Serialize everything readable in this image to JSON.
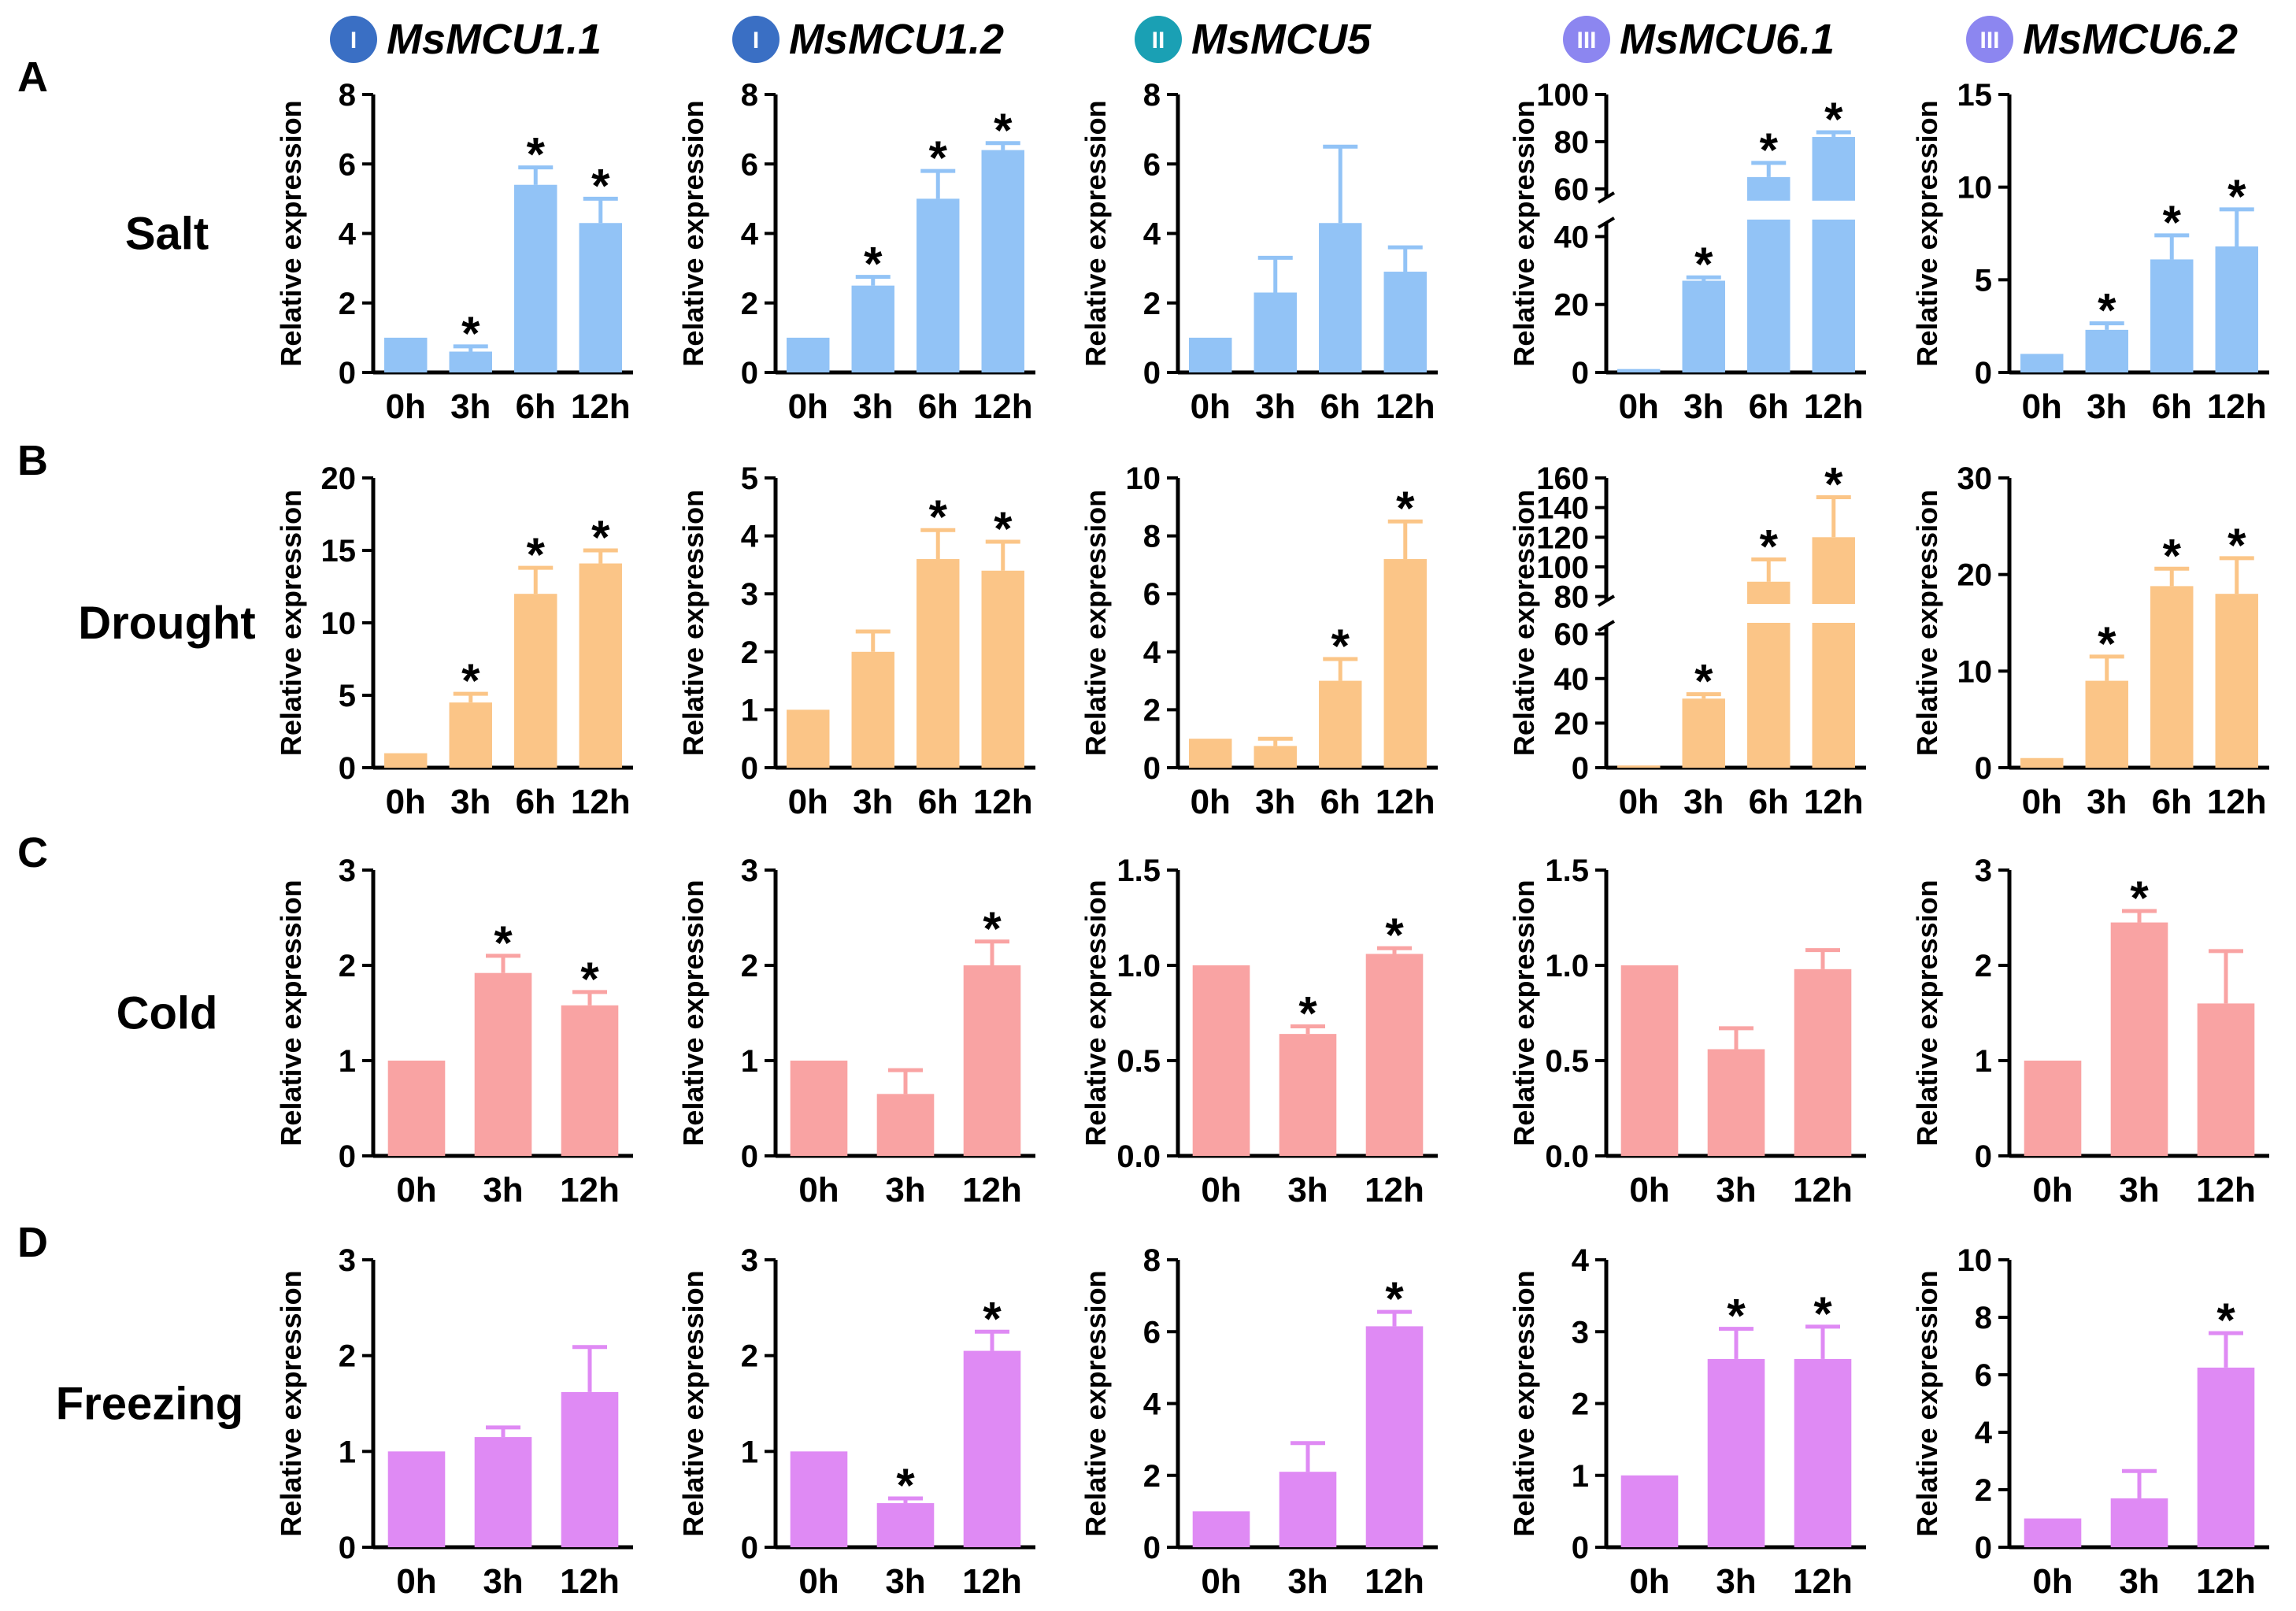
{
  "figure": {
    "genes": [
      {
        "badge": "I",
        "name": "MsMCU1.1",
        "color": "#3a6fc4"
      },
      {
        "badge": "I",
        "name": "MsMCU1.2",
        "color": "#3a6fc4"
      },
      {
        "badge": "II",
        "name": "MsMCU5",
        "color": "#1aa0b4"
      },
      {
        "badge": "III",
        "name": "MsMCU6.1",
        "color": "#8c86f0"
      },
      {
        "badge": "III",
        "name": "MsMCU6.2",
        "color": "#8c86f0"
      }
    ],
    "treatments": [
      {
        "letter": "A",
        "name": "Salt",
        "color": "#92c3f6"
      },
      {
        "letter": "B",
        "name": "Drought",
        "color": "#fbc587"
      },
      {
        "letter": "C",
        "name": "Cold",
        "color": "#f9a3a3"
      },
      {
        "letter": "D",
        "name": "Freezing",
        "color": "#df8af4"
      }
    ],
    "ylabel": "Relative expression",
    "significance_marker": "*"
  },
  "chart_data": [
    {
      "panel": "A",
      "treatment": "Salt",
      "gene": "MsMCU1.1",
      "type": "bar",
      "categories": [
        "0h",
        "3h",
        "6h",
        "12h"
      ],
      "values": [
        1.0,
        0.6,
        5.4,
        4.3
      ],
      "errors": [
        0,
        0.15,
        0.5,
        0.7
      ],
      "significant": [
        false,
        true,
        true,
        true
      ],
      "ylim": [
        0,
        8
      ],
      "yticks": [
        0,
        2,
        4,
        6,
        8
      ],
      "tick_labels": [
        "0",
        "2",
        "4",
        "6",
        "8"
      ],
      "xlabel": "",
      "ylabel": "Relative expression"
    },
    {
      "panel": "A",
      "treatment": "Salt",
      "gene": "MsMCU1.2",
      "type": "bar",
      "categories": [
        "0h",
        "3h",
        "6h",
        "12h"
      ],
      "values": [
        1.0,
        2.5,
        5.0,
        6.4
      ],
      "errors": [
        0,
        0.25,
        0.8,
        0.2
      ],
      "significant": [
        false,
        true,
        true,
        true
      ],
      "ylim": [
        0,
        8
      ],
      "yticks": [
        0,
        2,
        4,
        6,
        8
      ],
      "tick_labels": [
        "0",
        "2",
        "4",
        "6",
        "8"
      ],
      "xlabel": "",
      "ylabel": "Relative expression"
    },
    {
      "panel": "A",
      "treatment": "Salt",
      "gene": "MsMCU5",
      "type": "bar",
      "categories": [
        "0h",
        "3h",
        "6h",
        "12h"
      ],
      "values": [
        1.0,
        2.3,
        4.3,
        2.9
      ],
      "errors": [
        0,
        1.0,
        2.2,
        0.7
      ],
      "significant": [
        false,
        false,
        false,
        false
      ],
      "ylim": [
        0,
        8
      ],
      "yticks": [
        0,
        2,
        4,
        6,
        8
      ],
      "tick_labels": [
        "0",
        "2",
        "4",
        "6",
        "8"
      ],
      "xlabel": "",
      "ylabel": "Relative expression"
    },
    {
      "panel": "A",
      "treatment": "Salt",
      "gene": "MsMCU6.1",
      "type": "bar",
      "categories": [
        "0h",
        "3h",
        "6h",
        "12h"
      ],
      "values": [
        1.0,
        27,
        65,
        82
      ],
      "errors": [
        0,
        1.0,
        6.0,
        2.0
      ],
      "significant": [
        false,
        true,
        true,
        true
      ],
      "ylim": [
        0,
        100
      ],
      "broken_axis": {
        "lower": [
          0,
          45
        ],
        "upper": [
          55,
          100
        ],
        "split": 0.55
      },
      "yticks": [
        0,
        20,
        40,
        60,
        80,
        100
      ],
      "tick_labels": [
        "0",
        "20",
        "40",
        "60",
        "80",
        "100"
      ],
      "xlabel": "",
      "ylabel": "Relative expression"
    },
    {
      "panel": "A",
      "treatment": "Salt",
      "gene": "MsMCU6.2",
      "type": "bar",
      "categories": [
        "0h",
        "3h",
        "6h",
        "12h"
      ],
      "values": [
        1.0,
        2.3,
        6.1,
        6.8
      ],
      "errors": [
        0,
        0.35,
        1.3,
        2.0
      ],
      "significant": [
        false,
        true,
        true,
        true
      ],
      "ylim": [
        0,
        15
      ],
      "yticks": [
        0,
        5,
        10,
        15
      ],
      "tick_labels": [
        "0",
        "5",
        "10",
        "15"
      ],
      "xlabel": "",
      "ylabel": "Relative expression"
    },
    {
      "panel": "B",
      "treatment": "Drought",
      "gene": "MsMCU1.1",
      "type": "bar",
      "categories": [
        "0h",
        "3h",
        "6h",
        "12h"
      ],
      "values": [
        1.0,
        4.5,
        12.0,
        14.1
      ],
      "errors": [
        0,
        0.6,
        1.8,
        0.9
      ],
      "significant": [
        false,
        true,
        true,
        true
      ],
      "ylim": [
        0,
        20
      ],
      "yticks": [
        0,
        5,
        10,
        15,
        20
      ],
      "tick_labels": [
        "0",
        "5",
        "10",
        "15",
        "20"
      ],
      "xlabel": "",
      "ylabel": "Relative expression"
    },
    {
      "panel": "B",
      "treatment": "Drought",
      "gene": "MsMCU1.2",
      "type": "bar",
      "categories": [
        "0h",
        "3h",
        "6h",
        "12h"
      ],
      "values": [
        1.0,
        2.0,
        3.6,
        3.4
      ],
      "errors": [
        0,
        0.35,
        0.5,
        0.5
      ],
      "significant": [
        false,
        false,
        true,
        true
      ],
      "ylim": [
        0,
        5
      ],
      "yticks": [
        0,
        1,
        2,
        3,
        4,
        5
      ],
      "tick_labels": [
        "0",
        "1",
        "2",
        "3",
        "4",
        "5"
      ],
      "xlabel": "",
      "ylabel": "Relative expression"
    },
    {
      "panel": "B",
      "treatment": "Drought",
      "gene": "MsMCU5",
      "type": "bar",
      "categories": [
        "0h",
        "3h",
        "6h",
        "12h"
      ],
      "values": [
        1.0,
        0.75,
        3.0,
        7.2
      ],
      "errors": [
        0,
        0.25,
        0.75,
        1.3
      ],
      "significant": [
        false,
        false,
        true,
        true
      ],
      "ylim": [
        0,
        10
      ],
      "yticks": [
        0,
        2,
        4,
        6,
        8,
        10
      ],
      "tick_labels": [
        "0",
        "2",
        "4",
        "6",
        "8",
        "10"
      ],
      "xlabel": "",
      "ylabel": "Relative expression"
    },
    {
      "panel": "B",
      "treatment": "Drought",
      "gene": "MsMCU6.1",
      "type": "bar",
      "categories": [
        "0h",
        "3h",
        "6h",
        "12h"
      ],
      "values": [
        1.0,
        31,
        90,
        120
      ],
      "errors": [
        0,
        2.0,
        15,
        27
      ],
      "significant": [
        false,
        true,
        true,
        true
      ],
      "ylim": [
        0,
        160
      ],
      "broken_axis": {
        "lower": [
          0,
          65
        ],
        "upper": [
          75,
          160
        ],
        "split": 0.5
      },
      "yticks": [
        0,
        20,
        40,
        60,
        80,
        100,
        120,
        140,
        160
      ],
      "tick_labels": [
        "0",
        "20",
        "40",
        "60",
        "80",
        "100",
        "120",
        "140",
        "160"
      ],
      "xlabel": "",
      "ylabel": "Relative expression"
    },
    {
      "panel": "B",
      "treatment": "Drought",
      "gene": "MsMCU6.2",
      "type": "bar",
      "categories": [
        "0h",
        "3h",
        "6h",
        "12h"
      ],
      "values": [
        1.0,
        9.0,
        18.8,
        18.0
      ],
      "errors": [
        0,
        2.5,
        1.8,
        3.7
      ],
      "significant": [
        false,
        true,
        true,
        true
      ],
      "ylim": [
        0,
        30
      ],
      "yticks": [
        0,
        10,
        20,
        30
      ],
      "tick_labels": [
        "0",
        "10",
        "20",
        "30"
      ],
      "xlabel": "",
      "ylabel": "Relative expression"
    },
    {
      "panel": "C",
      "treatment": "Cold",
      "gene": "MsMCU1.1",
      "type": "bar",
      "categories": [
        "0h",
        "3h",
        "12h"
      ],
      "values": [
        1.0,
        1.92,
        1.58
      ],
      "errors": [
        0,
        0.18,
        0.14
      ],
      "significant": [
        false,
        true,
        true
      ],
      "ylim": [
        0,
        3
      ],
      "yticks": [
        0,
        1,
        2,
        3
      ],
      "tick_labels": [
        "0",
        "1",
        "2",
        "3"
      ],
      "xlabel": "",
      "ylabel": "Relative expression"
    },
    {
      "panel": "C",
      "treatment": "Cold",
      "gene": "MsMCU1.2",
      "type": "bar",
      "categories": [
        "0h",
        "3h",
        "12h"
      ],
      "values": [
        1.0,
        0.65,
        2.0
      ],
      "errors": [
        0,
        0.25,
        0.25
      ],
      "significant": [
        false,
        false,
        true
      ],
      "ylim": [
        0,
        3
      ],
      "yticks": [
        0,
        1,
        2,
        3
      ],
      "tick_labels": [
        "0",
        "1",
        "2",
        "3"
      ],
      "xlabel": "",
      "ylabel": "Relative expression"
    },
    {
      "panel": "C",
      "treatment": "Cold",
      "gene": "MsMCU5",
      "type": "bar",
      "categories": [
        "0h",
        "3h",
        "12h"
      ],
      "values": [
        1.0,
        0.64,
        1.06
      ],
      "errors": [
        0,
        0.04,
        0.03
      ],
      "significant": [
        false,
        true,
        true
      ],
      "ylim": [
        0,
        1.5
      ],
      "yticks": [
        0,
        0.5,
        1.0,
        1.5
      ],
      "tick_labels": [
        "0.0",
        "0.5",
        "1.0",
        "1.5"
      ],
      "xlabel": "",
      "ylabel": "Relative expression"
    },
    {
      "panel": "C",
      "treatment": "Cold",
      "gene": "MsMCU6.1",
      "type": "bar",
      "categories": [
        "0h",
        "3h",
        "12h"
      ],
      "values": [
        1.0,
        0.56,
        0.98
      ],
      "errors": [
        0,
        0.11,
        0.1
      ],
      "significant": [
        false,
        false,
        false
      ],
      "ylim": [
        0,
        1.5
      ],
      "yticks": [
        0,
        0.5,
        1.0,
        1.5
      ],
      "tick_labels": [
        "0.0",
        "0.5",
        "1.0",
        "1.5"
      ],
      "xlabel": "",
      "ylabel": "Relative expression"
    },
    {
      "panel": "C",
      "treatment": "Cold",
      "gene": "MsMCU6.2",
      "type": "bar",
      "categories": [
        "0h",
        "3h",
        "12h"
      ],
      "values": [
        1.0,
        2.45,
        1.6
      ],
      "errors": [
        0,
        0.12,
        0.55
      ],
      "significant": [
        false,
        true,
        false
      ],
      "ylim": [
        0,
        3
      ],
      "yticks": [
        0,
        1,
        2,
        3
      ],
      "tick_labels": [
        "0",
        "1",
        "2",
        "3"
      ],
      "xlabel": "",
      "ylabel": "Relative expression"
    },
    {
      "panel": "D",
      "treatment": "Freezing",
      "gene": "MsMCU1.1",
      "type": "bar",
      "categories": [
        "0h",
        "3h",
        "12h"
      ],
      "values": [
        1.0,
        1.15,
        1.62
      ],
      "errors": [
        0,
        0.1,
        0.47
      ],
      "significant": [
        false,
        false,
        false
      ],
      "ylim": [
        0,
        3
      ],
      "yticks": [
        0,
        1,
        2,
        3
      ],
      "tick_labels": [
        "0",
        "1",
        "2",
        "3"
      ],
      "xlabel": "",
      "ylabel": "Relative expression"
    },
    {
      "panel": "D",
      "treatment": "Freezing",
      "gene": "MsMCU1.2",
      "type": "bar",
      "categories": [
        "0h",
        "3h",
        "12h"
      ],
      "values": [
        1.0,
        0.46,
        2.05
      ],
      "errors": [
        0,
        0.05,
        0.2
      ],
      "significant": [
        false,
        true,
        true
      ],
      "ylim": [
        0,
        3
      ],
      "yticks": [
        0,
        1,
        2,
        3
      ],
      "tick_labels": [
        "0",
        "1",
        "2",
        "3"
      ],
      "xlabel": "",
      "ylabel": "Relative expression"
    },
    {
      "panel": "D",
      "treatment": "Freezing",
      "gene": "MsMCU5",
      "type": "bar",
      "categories": [
        "0h",
        "3h",
        "12h"
      ],
      "values": [
        1.0,
        2.1,
        6.15
      ],
      "errors": [
        0,
        0.8,
        0.4
      ],
      "significant": [
        false,
        false,
        true
      ],
      "ylim": [
        0,
        8
      ],
      "yticks": [
        0,
        2,
        4,
        6,
        8
      ],
      "tick_labels": [
        "0",
        "2",
        "4",
        "6",
        "8"
      ],
      "xlabel": "",
      "ylabel": "Relative expression"
    },
    {
      "panel": "D",
      "treatment": "Freezing",
      "gene": "MsMCU6.1",
      "type": "bar",
      "categories": [
        "0h",
        "3h",
        "12h"
      ],
      "values": [
        1.0,
        2.62,
        2.62
      ],
      "errors": [
        0,
        0.42,
        0.45
      ],
      "significant": [
        false,
        true,
        true
      ],
      "ylim": [
        0,
        4
      ],
      "yticks": [
        0,
        1,
        2,
        3,
        4
      ],
      "tick_labels": [
        "0",
        "1",
        "2",
        "3",
        "4"
      ],
      "xlabel": "",
      "ylabel": "Relative expression"
    },
    {
      "panel": "D",
      "treatment": "Freezing",
      "gene": "MsMCU6.2",
      "type": "bar",
      "categories": [
        "0h",
        "3h",
        "12h"
      ],
      "values": [
        1.0,
        1.7,
        6.25
      ],
      "errors": [
        0,
        0.95,
        1.2
      ],
      "significant": [
        false,
        false,
        true
      ],
      "ylim": [
        0,
        10
      ],
      "yticks": [
        0,
        2,
        4,
        6,
        8,
        10
      ],
      "tick_labels": [
        "0",
        "2",
        "4",
        "6",
        "8",
        "10"
      ],
      "xlabel": "",
      "ylabel": "Relative expression"
    }
  ]
}
